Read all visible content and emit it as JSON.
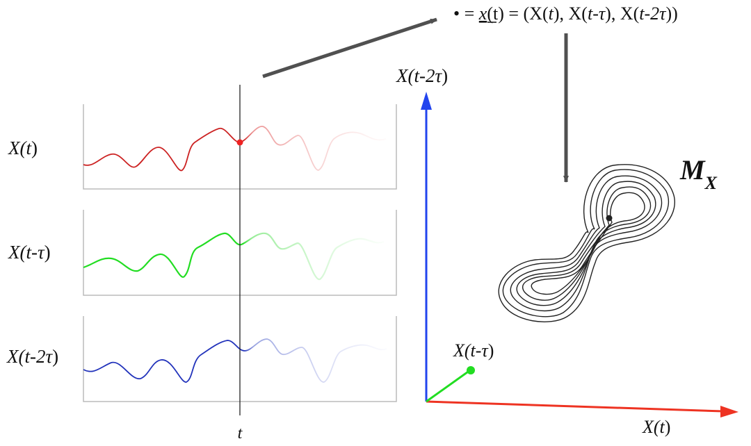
{
  "panels": [
    {
      "id": "x-t",
      "label_main": "X(",
      "label_arg": "t",
      "label_end": ")",
      "color": "#cc2222"
    },
    {
      "id": "x-t-tau",
      "label_main": "X(",
      "label_arg": "t-τ",
      "label_end": ")",
      "color": "#22dd22"
    },
    {
      "id": "x-t-2tau",
      "label_main": "X(",
      "label_arg": "t-2τ",
      "label_end": ")",
      "color": "#2233bb"
    }
  ],
  "time_marker": {
    "label": "t"
  },
  "formula": {
    "bullet": "•",
    "eq1": " = ",
    "vec": "x",
    "vec_arg": "(t)",
    "eq2": " = (X(",
    "a1": "t",
    "m1": "), X(",
    "a2": "t-τ",
    "m2": "), X(",
    "a3": "t-2τ",
    "end": "))"
  },
  "axes": {
    "x_axis": {
      "label_main": "X(",
      "label_arg": "t",
      "label_end": ")",
      "color": "#ee3322"
    },
    "y_axis": {
      "label_main": "X(",
      "label_arg": "t-τ",
      "label_end": ")",
      "color": "#22dd22"
    },
    "z_axis": {
      "label_main": "X(",
      "label_arg": "t-2τ",
      "label_end": ")",
      "color": "#2244ee"
    }
  },
  "manifold": {
    "label": "M",
    "subscript": "X"
  },
  "colors": {
    "arrow": "#505050",
    "marker_line": "#222222",
    "frame": "#bbbbbb",
    "point": "#ee2222"
  }
}
